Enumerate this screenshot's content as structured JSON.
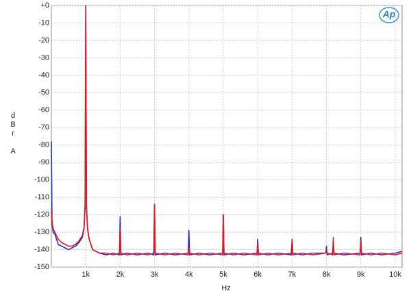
{
  "chart_data": {
    "type": "line",
    "logo": "Ap",
    "xlabel": "Hz",
    "ylabel": "dBr A",
    "x": [
      0,
      20,
      50,
      100,
      200,
      300,
      400,
      500,
      600,
      700,
      800,
      900,
      950,
      980,
      1000,
      1020,
      1050,
      1100,
      1200,
      1400,
      1600,
      1800,
      1980,
      2000,
      2020,
      2200,
      2500,
      2800,
      2980,
      3000,
      3020,
      3300,
      3600,
      3980,
      4000,
      4020,
      4300,
      4600,
      4980,
      5000,
      5020,
      5300,
      5600,
      5980,
      6000,
      6020,
      6300,
      6600,
      6980,
      7000,
      7020,
      7300,
      7600,
      7980,
      8000,
      8020,
      8180,
      8200,
      8220,
      8500,
      8980,
      9000,
      9020,
      9300,
      9600,
      10000,
      10200
    ],
    "series": [
      {
        "color": "#1f2fd0",
        "values": [
          -78,
          -125,
          -130,
          -131,
          -137,
          -138,
          -139,
          -140,
          -139,
          -138,
          -136,
          -133,
          -128,
          -115,
          0,
          -115,
          -128,
          -134,
          -140,
          -142,
          -143,
          -142,
          -143,
          -121,
          -143,
          -142,
          -143,
          -142,
          -143,
          -114,
          -143,
          -142,
          -143,
          -142,
          -129,
          -143,
          -142,
          -143,
          -142,
          -120,
          -143,
          -142,
          -143,
          -142,
          -134,
          -142,
          -143,
          -142,
          -143,
          -134,
          -142,
          -143,
          -142,
          -142,
          -138,
          -143,
          -142,
          -136,
          -142,
          -143,
          -142,
          -133,
          -143,
          -142,
          -143,
          -142,
          -141
        ]
      },
      {
        "color": "#e8141c",
        "values": [
          -118,
          -124,
          -128,
          -130,
          -134,
          -136,
          -137,
          -138,
          -138,
          -137,
          -135,
          -132,
          -127,
          -114,
          0,
          -114,
          -127,
          -134,
          -140,
          -142,
          -142,
          -143,
          -142,
          -128,
          -142,
          -143,
          -142,
          -143,
          -142,
          -114,
          -142,
          -143,
          -142,
          -143,
          -139,
          -142,
          -143,
          -142,
          -143,
          -120,
          -142,
          -143,
          -142,
          -143,
          -137,
          -143,
          -142,
          -143,
          -142,
          -134,
          -143,
          -142,
          -143,
          -142,
          -140,
          -142,
          -143,
          -133,
          -143,
          -142,
          -143,
          -135,
          -142,
          -143,
          -142,
          -143,
          -142
        ]
      }
    ],
    "xlim": [
      0,
      10200
    ],
    "ylim": [
      -150,
      0
    ],
    "xticks": [
      {
        "value": 1000,
        "label": "1k"
      },
      {
        "value": 2000,
        "label": "2k"
      },
      {
        "value": 3000,
        "label": "3k"
      },
      {
        "value": 4000,
        "label": "4k"
      },
      {
        "value": 5000,
        "label": "5k"
      },
      {
        "value": 6000,
        "label": "6k"
      },
      {
        "value": 7000,
        "label": "7k"
      },
      {
        "value": 8000,
        "label": "8k"
      },
      {
        "value": 9000,
        "label": "9k"
      },
      {
        "value": 10000,
        "label": "10k"
      }
    ],
    "yticks": [
      {
        "value": 0,
        "label": "+0"
      },
      -10,
      -20,
      -30,
      -40,
      -50,
      -60,
      -70,
      -80,
      -90,
      -100,
      -110,
      -120,
      -130,
      -140,
      -150
    ],
    "grid": true
  }
}
